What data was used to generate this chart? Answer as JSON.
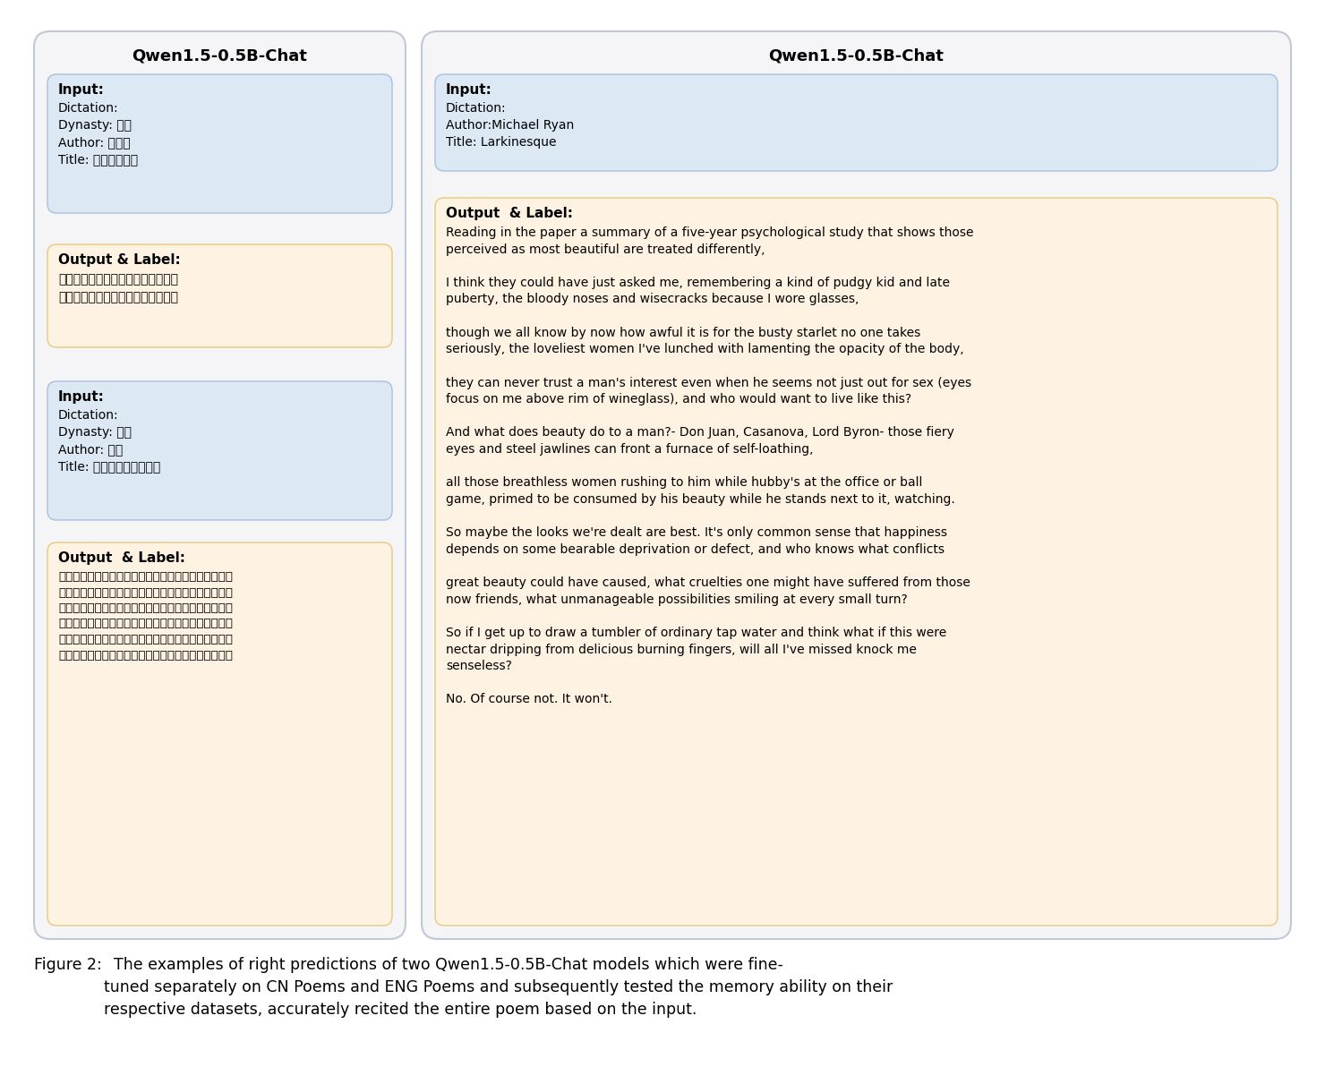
{
  "fig_width": 14.8,
  "fig_height": 11.92,
  "bg_color": "#ffffff",
  "left_panel": {
    "title": "Qwen1.5-0.5B-Chat",
    "outer_bg": "#f5f5f8",
    "outer_border": "#c0c8d8",
    "boxes": [
      {
        "type": "input",
        "bg_color": "#dde8f5",
        "border_color": "#a8c0dc",
        "label": "Input:",
        "text": "Dictation:\nDynasty: 宋代\nAuthor: 李弥逃\nTitle: 题大儒寡小阁"
      },
      {
        "type": "output",
        "bg_color": "#fef3e2",
        "border_color": "#e8c87a",
        "label": "Output & Label:",
        "text": "青鞎踏尽剑锄山，借枕僧房落照间。\n高屋凭虚听泉语，岭云应似我身闲。"
      },
      {
        "type": "input",
        "bg_color": "#dde8f5",
        "border_color": "#a8c0dc",
        "label": "Input:",
        "text": "Dictation:\nDynasty: 唐代\nAuthor: 岑参\nTitle: 故什射裂公挠歌三首"
      },
      {
        "type": "output",
        "bg_color": "#fef3e2",
        "border_color": "#e8c87a",
        "label": "Output  & Label:",
        "text": "盛德资邦杰，嘉谟作世程。门瞰驿马贵，时仰八龙名。\n罕市秦人送，还乡绣老迎。莫埋丞相印，留著付玄成。\n五府豁高位，三台丧大贤。礼容还故绯，宠赠冠新田。\n气歌分阴鼎，魂飞京兆岌。先时剑已没，玉树久苍然。\n富贵徐言久，乡间殂后归。锦衣都未著，丹榖忽先飞。\n岐挨辞秦塞，悲施出帝跬。遥知九原上，渐觉吐人稀。"
      }
    ]
  },
  "right_panel": {
    "title": "Qwen1.5-0.5B-Chat",
    "outer_bg": "#f5f5f8",
    "outer_border": "#c0c8d8",
    "boxes": [
      {
        "type": "input",
        "bg_color": "#dde8f5",
        "border_color": "#a8c0dc",
        "label": "Input:",
        "text": "Dictation:\nAuthor:Michael Ryan\nTitle: Larkinesque"
      },
      {
        "type": "output",
        "bg_color": "#fef3e2",
        "border_color": "#e8c87a",
        "label": "Output  & Label:",
        "text": "Reading in the paper a summary of a five-year psychological study that shows those\nperceived as most beautiful are treated differently,\n\nI think they could have just asked me, remembering a kind of pudgy kid and late\npuberty, the bloody noses and wisecracks because I wore glasses,\n\nthough we all know by now how awful it is for the busty starlet no one takes\nseriously, the loveliest women I've lunched with lamenting the opacity of the body,\n\nthey can never trust a man's interest even when he seems not just out for sex (eyes\nfocus on me above rim of wineglass), and who would want to live like this?\n\nAnd what does beauty do to a man?- Don Juan, Casanova, Lord Byron- those fiery\neyes and steel jawlines can front a furnace of self-loathing,\n\nall those breathless women rushing to him while hubby's at the office or ball\ngame, primed to be consumed by his beauty while he stands next to it, watching.\n\nSo maybe the looks we're dealt are best. It's only common sense that happiness\ndepends on some bearable deprivation or defect, and who knows what conflicts\n\ngreat beauty could have caused, what cruelties one might have suffered from those\nnow friends, what unmanageable possibilities smiling at every small turn?\n\nSo if I get up to draw a tumbler of ordinary tap water and think what if this were\nnectar dripping from delicious burning fingers, will all I've missed knock me\nsenseless?\n\nNo. Of course not. It won't."
      }
    ]
  },
  "caption_bold": "Figure 2:",
  "caption_rest": "  The examples of right predictions of two Qwen1.5-0.5B-Chat models which were fine-\ntuned separately on CN Poems and ENG Poems and subsequently tested the memory ability on their\nrespective datasets, accurately recited the entire poem based on the input.",
  "title_fontsize": 13,
  "label_fontsize": 11,
  "text_fontsize": 10,
  "caption_fontsize": 12.5
}
